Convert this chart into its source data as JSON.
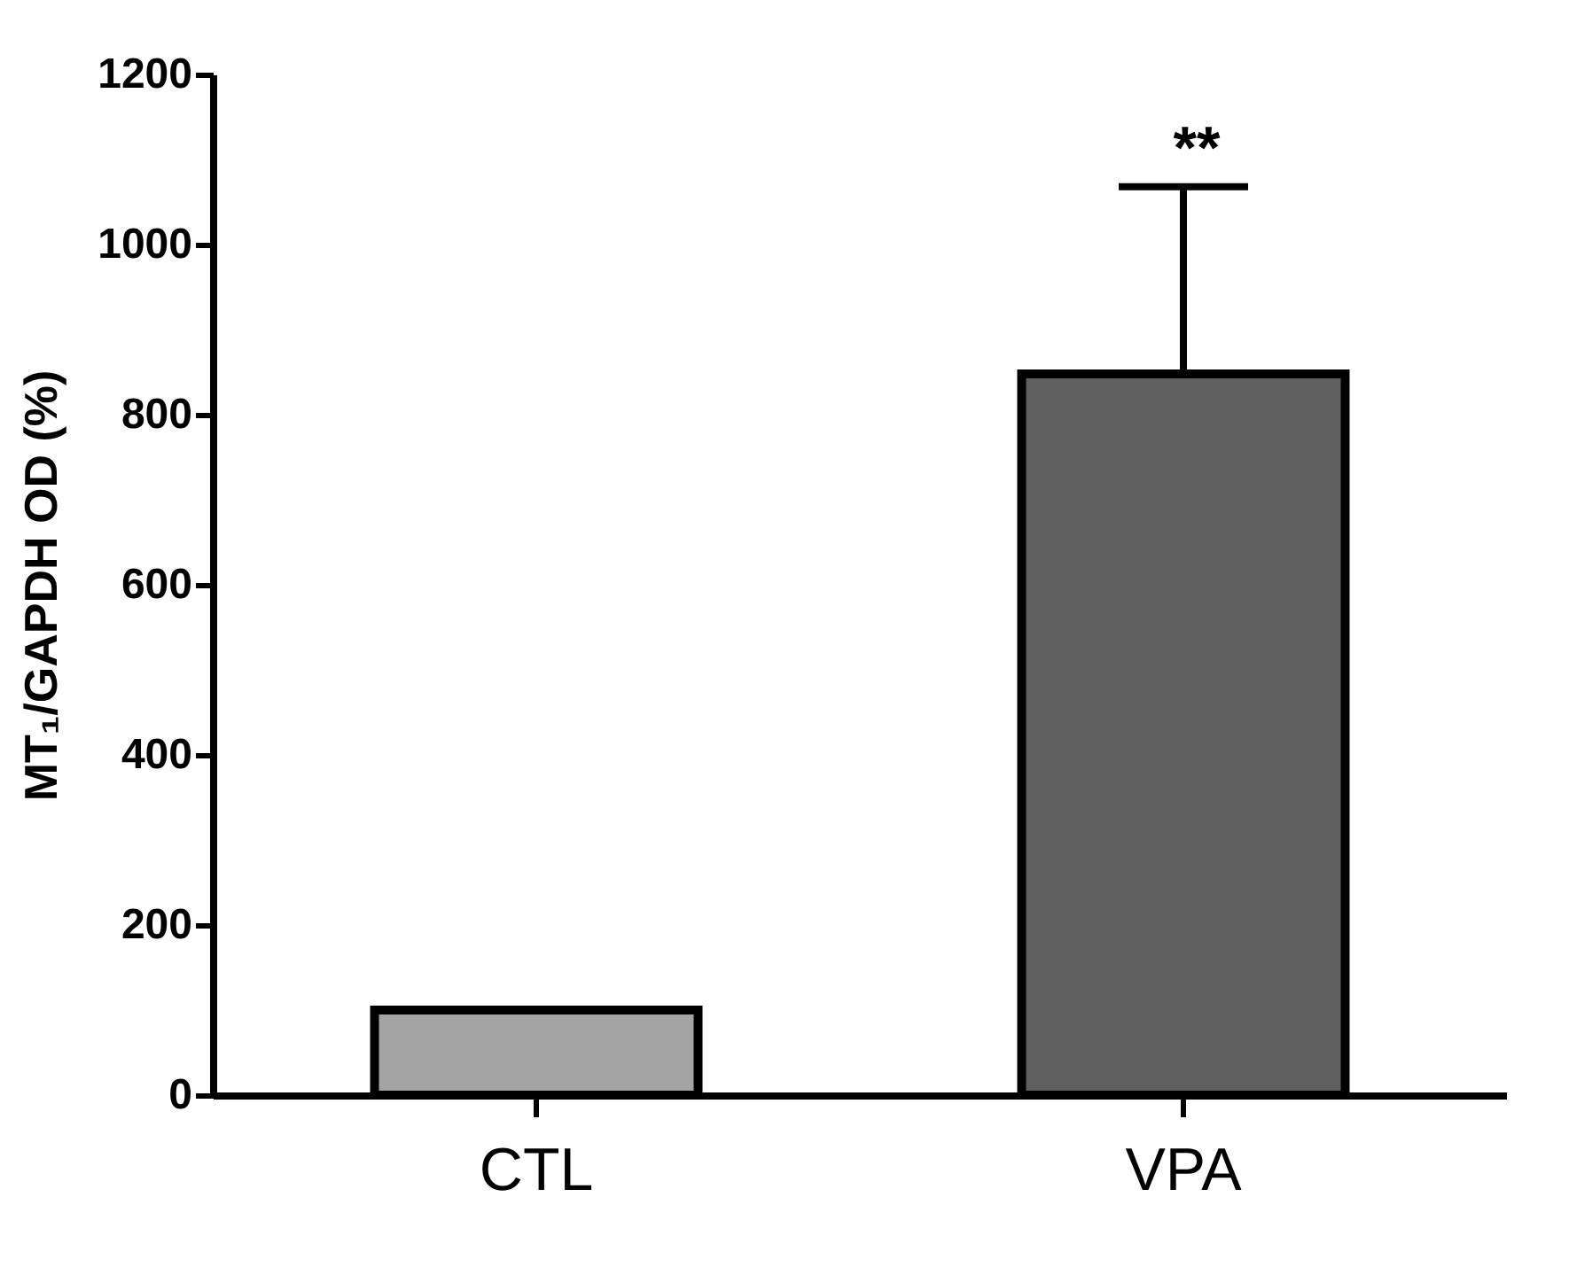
{
  "chart_data": {
    "type": "bar",
    "ylabel": "MT₁/GAPDH OD (%)",
    "categories": [
      "CTL",
      "VPA"
    ],
    "values": [
      100,
      848
    ],
    "colors": [
      "#a3a3a3",
      "#5f5f5f"
    ],
    "errors": [
      null,
      [
        848,
        1068
      ]
    ],
    "ylim": [
      0,
      1200
    ],
    "yticks": [
      0,
      200,
      400,
      600,
      800,
      1000,
      1200
    ],
    "grid": false,
    "annotations": [
      "**"
    ]
  }
}
